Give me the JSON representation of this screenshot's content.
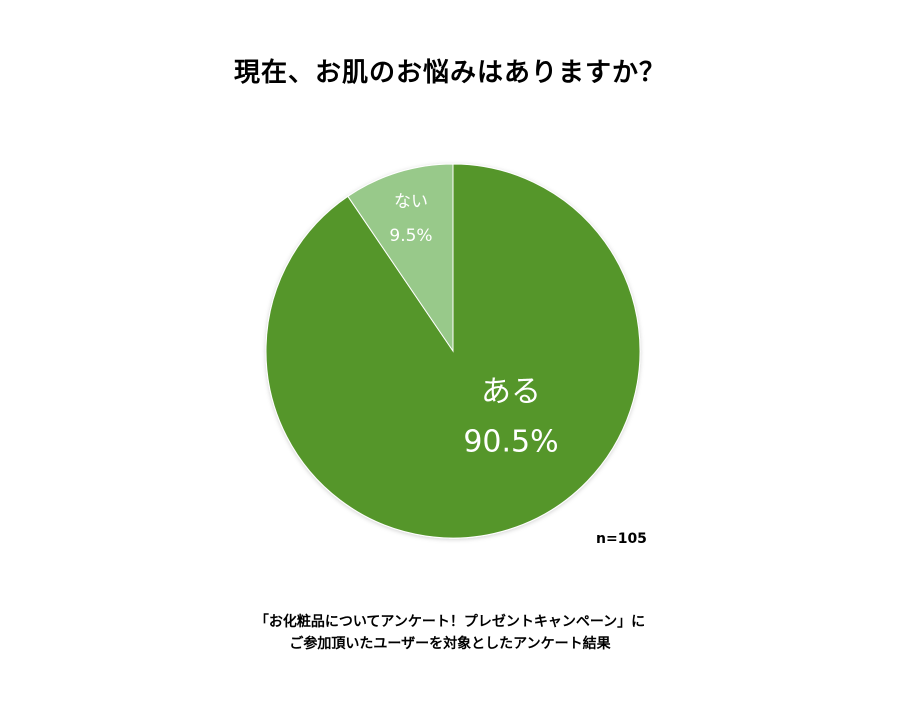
{
  "chart_data": {
    "type": "pie",
    "title": "現在、お肌のお悩みはありますか？",
    "slices": [
      {
        "label": "ある",
        "value": 90.5,
        "value_label": "90.5%",
        "color": "#55962a"
      },
      {
        "label": "ない",
        "value": 9.5,
        "value_label": "9.5%",
        "color": "#98c98a"
      }
    ],
    "sample_size": "n=105"
  },
  "source_note": {
    "line1": "「お化粧品についてアンケート！プレゼントキャンペーン」に",
    "line2": "ご参加頂いたユーザーを対象としたアンケート結果"
  }
}
